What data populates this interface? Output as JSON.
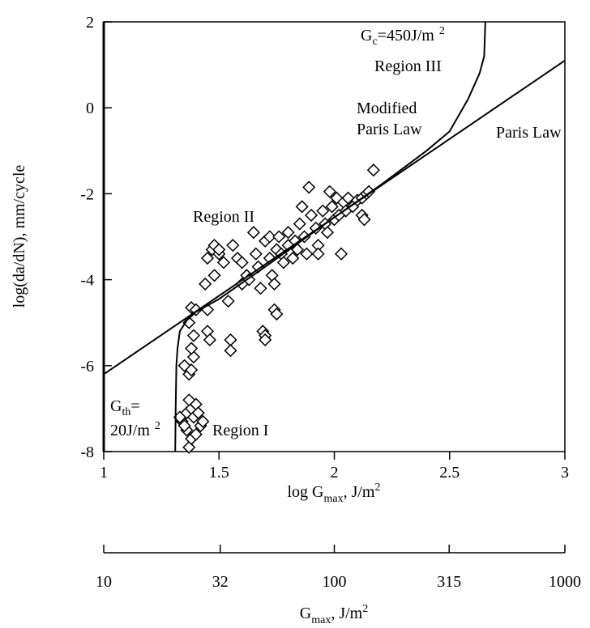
{
  "chart_data": {
    "type": "scatter",
    "xlabel": [
      "log G",
      "max",
      ", J/m",
      "2"
    ],
    "ylabel": "log(da/dN), mm/cycle",
    "x2label": [
      "G",
      "max",
      ", J/m",
      "2"
    ],
    "xlim": [
      1,
      3
    ],
    "xticks": [
      1,
      1.5,
      2,
      2.5,
      3
    ],
    "ylim": [
      -8,
      2
    ],
    "yticks": [
      -8,
      -6,
      -4,
      -2,
      0,
      2
    ],
    "x2lim": [
      10,
      1000
    ],
    "x2ticks": [
      10,
      32,
      100,
      315,
      1000
    ],
    "x2log": true,
    "annotations": [
      [
        "G",
        "c",
        "=450J/m",
        "2"
      ],
      [
        "Region III"
      ],
      [
        "Modified"
      ],
      [
        "Paris Law"
      ],
      [
        "Paris Law"
      ],
      [
        "Region II"
      ],
      [
        "G",
        "th",
        "="
      ],
      [
        "20J/m",
        "2"
      ],
      [
        "Region I"
      ]
    ],
    "series": [
      {
        "type": "scatter",
        "color": "#000000",
        "x": [
          1.37,
          1.38,
          1.36,
          1.4,
          1.42,
          1.34,
          1.36,
          1.38,
          1.4,
          1.37,
          1.39,
          1.33,
          1.35,
          1.41,
          1.43,
          1.37,
          1.38,
          1.35,
          1.39,
          1.38,
          1.39,
          1.37,
          1.38,
          1.4,
          1.45,
          1.45,
          1.46,
          1.44,
          1.48,
          1.45,
          1.47,
          1.48,
          1.5,
          1.52,
          1.54,
          1.55,
          1.55,
          1.56,
          1.58,
          1.6,
          1.62,
          1.63,
          1.65,
          1.66,
          1.67,
          1.68,
          1.69,
          1.7,
          1.7,
          1.7,
          1.72,
          1.72,
          1.73,
          1.74,
          1.74,
          1.75,
          1.75,
          1.77,
          1.78,
          1.8,
          1.8,
          1.82,
          1.83,
          1.85,
          1.86,
          1.87,
          1.88,
          1.89,
          1.9,
          1.92,
          1.93,
          1.93,
          1.95,
          1.96,
          1.98,
          1.99,
          2.0,
          2.01,
          2.03,
          2.04,
          2.05,
          2.06,
          2.08,
          2.1,
          2.12,
          2.12,
          2.13,
          2.14,
          2.15,
          2.17,
          1.6,
          1.5,
          1.76,
          1.84,
          1.97,
          2.02
        ],
        "values": [
          -7.9,
          -7.7,
          -7.5,
          -7.6,
          -7.4,
          -7.3,
          -7.1,
          -7.0,
          -6.9,
          -6.8,
          -7.2,
          -7.2,
          -7.4,
          -7.1,
          -7.3,
          -6.2,
          -6.1,
          -6.0,
          -5.8,
          -5.6,
          -5.3,
          -5.0,
          -4.65,
          -4.7,
          -4.7,
          -5.2,
          -5.4,
          -4.1,
          -3.9,
          -3.5,
          -3.3,
          -3.2,
          -3.4,
          -3.6,
          -4.5,
          -5.4,
          -5.65,
          -3.2,
          -3.5,
          -3.6,
          -3.9,
          -4.0,
          -2.9,
          -3.4,
          -3.7,
          -4.2,
          -5.2,
          -5.3,
          -5.4,
          -3.1,
          -3.0,
          -3.5,
          -3.9,
          -4.1,
          -4.7,
          -4.8,
          -3.3,
          -3.4,
          -3.6,
          -2.9,
          -3.2,
          -3.5,
          -3.1,
          -2.7,
          -2.3,
          -3.0,
          -3.4,
          -1.85,
          -2.5,
          -2.8,
          -3.2,
          -3.4,
          -2.4,
          -2.7,
          -1.95,
          -2.3,
          -2.6,
          -2.1,
          -3.4,
          -2.2,
          -2.4,
          -2.1,
          -2.3,
          -2.15,
          -2.1,
          -2.5,
          -2.6,
          -2.0,
          -1.95,
          -1.45,
          -4.1,
          -3.3,
          -3.0,
          -3.3,
          -2.9,
          -2.5
        ]
      },
      {
        "type": "line",
        "color": "#000000",
        "x": [
          1,
          3
        ],
        "values": [
          -6.2,
          1.1
        ]
      },
      {
        "type": "line",
        "color": "#000000",
        "x": [
          1.31,
          1.312,
          1.315,
          1.32,
          1.33,
          1.36,
          1.4,
          1.5,
          1.7,
          2.0,
          2.2,
          2.4,
          2.5,
          2.58,
          2.63,
          2.65,
          2.655
        ],
        "values": [
          -8,
          -7,
          -6,
          -5.6,
          -5.2,
          -4.95,
          -4.75,
          -4.45,
          -3.7,
          -2.55,
          -1.8,
          -1.0,
          -0.55,
          0.2,
          0.8,
          1.2,
          2
        ]
      }
    ]
  }
}
